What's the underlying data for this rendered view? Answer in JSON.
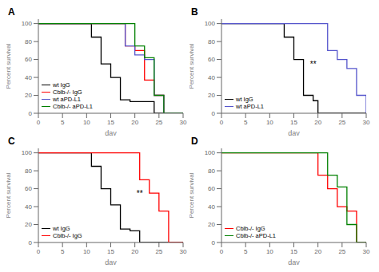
{
  "chart_data": [
    {
      "type": "step",
      "title": "A",
      "xlabel": "day",
      "ylabel": "Percent survival",
      "xlim": [
        0,
        30
      ],
      "ylim": [
        0,
        105
      ],
      "xticks": [
        0,
        5,
        10,
        15,
        20,
        25,
        30
      ],
      "yticks": [
        0,
        20,
        40,
        60,
        80,
        100
      ],
      "grid": false,
      "legend": "lower left",
      "series": [
        {
          "name": "wt IgG",
          "color": "black",
          "x": [
            0,
            11,
            13,
            15,
            17,
            19,
            24,
            30
          ],
          "values": [
            100,
            85,
            55,
            40,
            15,
            13,
            0,
            0
          ]
        },
        {
          "name": "Cblb-/- IgG",
          "color": "red",
          "x": [
            0,
            18,
            20,
            22,
            24,
            26,
            28,
            30
          ],
          "values": [
            100,
            75,
            70,
            37,
            20,
            0,
            0,
            0
          ]
        },
        {
          "name": "wt aPD-L1",
          "color": "#5555cc",
          "x": [
            0,
            18,
            20,
            22,
            24,
            26,
            30
          ],
          "values": [
            100,
            75,
            65,
            60,
            20,
            0,
            0
          ]
        },
        {
          "name": "Cblb-/- aPD-L1",
          "color": "green",
          "x": [
            0,
            18,
            20,
            22,
            24,
            26,
            30
          ],
          "values": [
            100,
            100,
            75,
            62,
            20,
            0,
            0
          ]
        }
      ]
    },
    {
      "type": "step",
      "title": "B",
      "xlabel": "day",
      "ylabel": "Percent survival",
      "xlim": [
        0,
        30
      ],
      "ylim": [
        0,
        105
      ],
      "xticks": [
        0,
        5,
        10,
        15,
        20,
        25,
        30
      ],
      "yticks": [
        0,
        20,
        40,
        60,
        80,
        100
      ],
      "grid": false,
      "legend": "lower left",
      "series": [
        {
          "name": "wt IgG",
          "color": "black",
          "x": [
            0,
            13,
            15,
            17,
            19,
            20,
            22,
            30
          ],
          "values": [
            100,
            85,
            60,
            20,
            14,
            0,
            0,
            0
          ]
        },
        {
          "name": "wt aPD-L1",
          "color": "#5555cc",
          "x": [
            0,
            20,
            22,
            24,
            26,
            28,
            30
          ],
          "values": [
            100,
            100,
            70,
            60,
            50,
            20,
            0
          ]
        }
      ],
      "annotations": [
        {
          "text": "**",
          "x": 19,
          "y": 55
        }
      ]
    },
    {
      "type": "step",
      "title": "C",
      "xlabel": "day",
      "ylabel": "Percent survival",
      "xlim": [
        0,
        30
      ],
      "ylim": [
        0,
        105
      ],
      "xticks": [
        0,
        5,
        10,
        15,
        20,
        25,
        30
      ],
      "yticks": [
        0,
        20,
        40,
        60,
        80,
        100
      ],
      "grid": false,
      "legend": "lower left",
      "series": [
        {
          "name": "wt IgG",
          "color": "black",
          "x": [
            0,
            11,
            13,
            15,
            17,
            19,
            21,
            30
          ],
          "values": [
            100,
            85,
            60,
            42,
            15,
            13,
            0,
            0
          ]
        },
        {
          "name": "Cblb-/- IgG",
          "color": "red",
          "x": [
            0,
            19,
            21,
            23,
            25,
            27,
            29,
            30
          ],
          "values": [
            100,
            100,
            70,
            55,
            35,
            0,
            0,
            0
          ]
        }
      ],
      "annotations": [
        {
          "text": "**",
          "x": 21,
          "y": 55
        }
      ]
    },
    {
      "type": "step",
      "title": "D",
      "xlabel": "day",
      "ylabel": "Percent survival",
      "xlim": [
        0,
        30
      ],
      "ylim": [
        0,
        105
      ],
      "xticks": [
        0,
        5,
        10,
        15,
        20,
        25,
        30
      ],
      "yticks": [
        0,
        20,
        40,
        60,
        80,
        100
      ],
      "grid": false,
      "legend": "lower left",
      "series": [
        {
          "name": "Cblb-/- IgG",
          "color": "red",
          "x": [
            0,
            18,
            20,
            22,
            24,
            26,
            28,
            30
          ],
          "values": [
            100,
            100,
            75,
            60,
            40,
            35,
            0,
            0
          ]
        },
        {
          "name": "Cblb-/- aPD-L1",
          "color": "green",
          "x": [
            0,
            18,
            20,
            22,
            24,
            26,
            28,
            30
          ],
          "values": [
            100,
            100,
            100,
            75,
            62,
            20,
            0,
            0
          ]
        }
      ]
    }
  ]
}
